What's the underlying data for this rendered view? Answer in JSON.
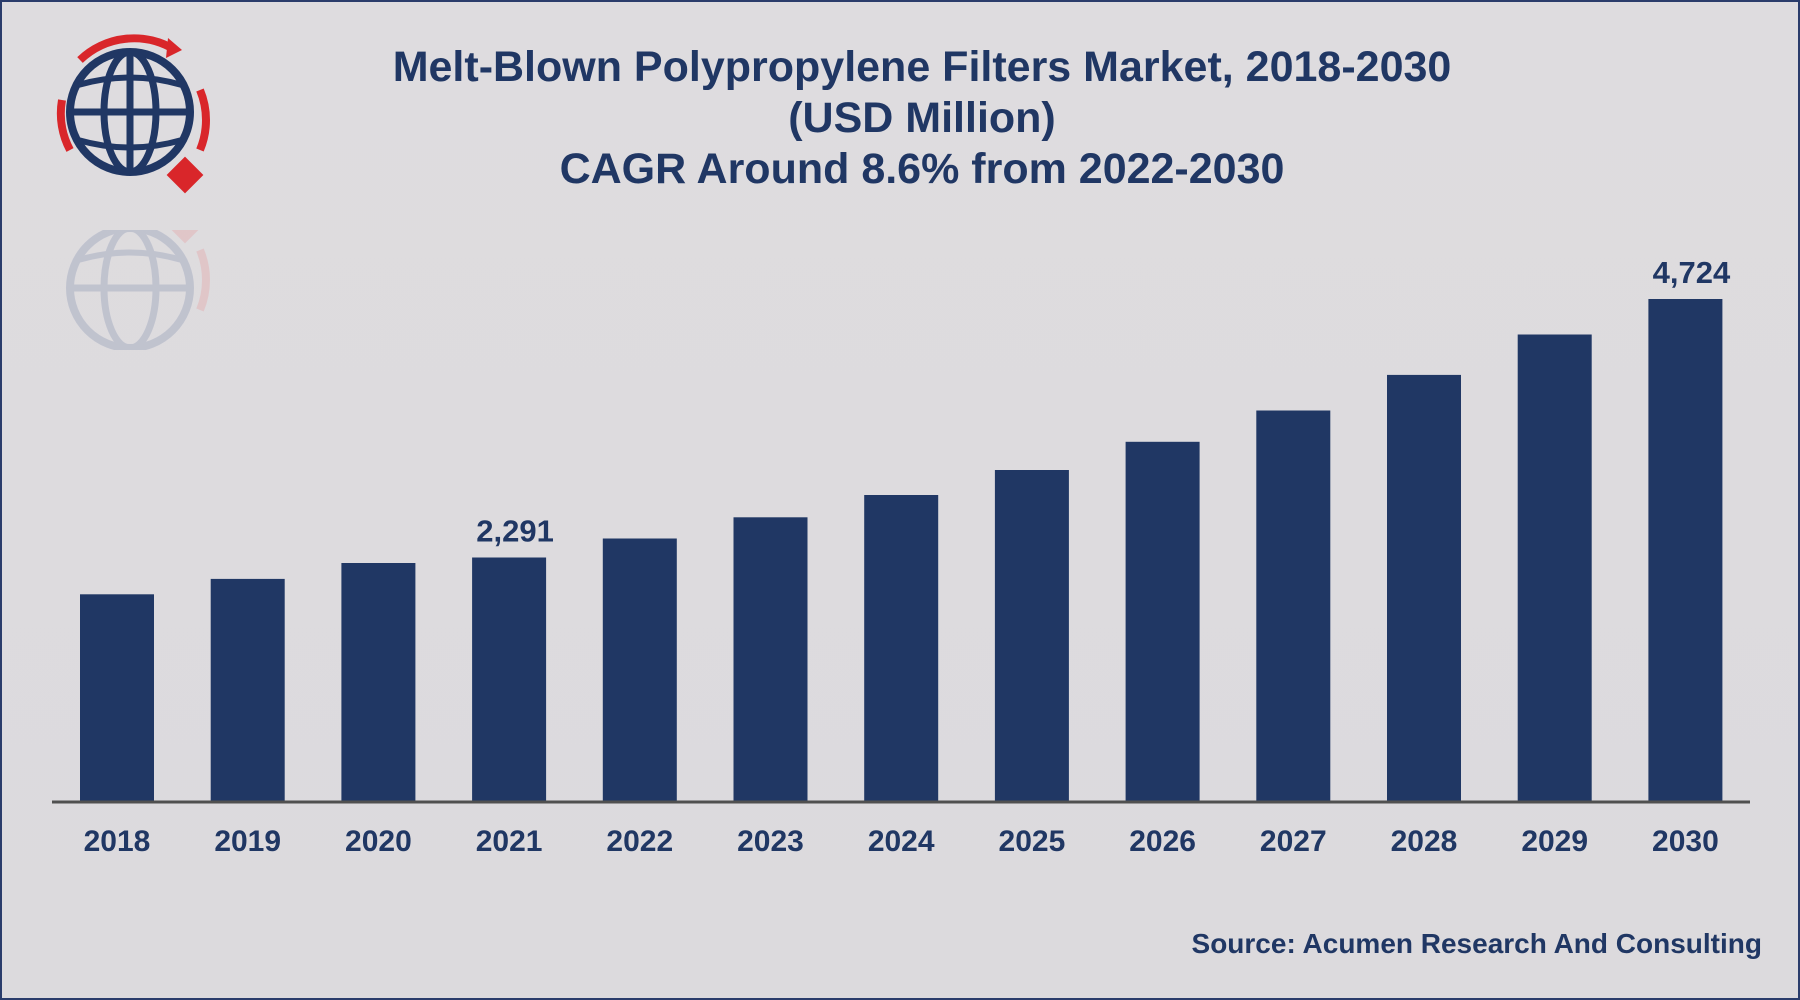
{
  "title_lines": [
    "Melt-Blown Polypropylene Filters Market, 2018-2030",
    "(USD Million)",
    "CAGR Around 8.6% from 2022-2030"
  ],
  "source": "Source: Acumen Research And Consulting",
  "colors": {
    "bar": "#203764",
    "text": "#203764",
    "axis": "#505050",
    "logo_red": "#d9262a"
  },
  "chart_data": {
    "type": "bar",
    "title": "Melt-Blown Polypropylene Filters Market, 2018-2030 (USD Million)",
    "categories": [
      "2018",
      "2019",
      "2020",
      "2021",
      "2022",
      "2023",
      "2024",
      "2025",
      "2026",
      "2027",
      "2028",
      "2029",
      "2030"
    ],
    "values": [
      1945,
      2090,
      2240,
      2291,
      2470,
      2670,
      2880,
      3115,
      3380,
      3675,
      4010,
      4390,
      4724
    ],
    "data_labels": [
      {
        "category": "2021",
        "text": "2,291"
      },
      {
        "category": "2030",
        "text": "4,724"
      }
    ],
    "xlabel": "",
    "ylabel": "",
    "ylim": [
      0,
      5000
    ],
    "grid": false,
    "legend": "none"
  }
}
